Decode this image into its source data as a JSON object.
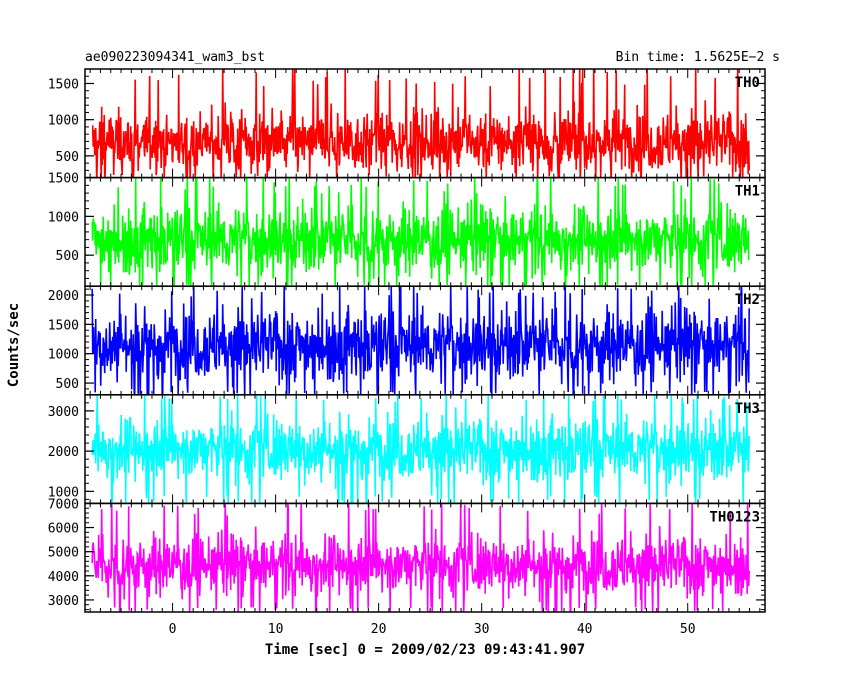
{
  "header": {
    "title": "ae090223094341_wam3_bst",
    "bin_time": "Bin time: 1.5625E−2 s"
  },
  "chart_data": {
    "type": "line",
    "title": "ae090223094341_wam3_bst",
    "subtitle": "Bin time: 1.5625E−2 s",
    "xlabel": "Time [sec] 0 = 2009/02/23 09:43:41.907",
    "ylabel": "Counts/sec",
    "xlim": [
      -8.5,
      57.5
    ],
    "x_range_data": [
      -7.8,
      56.0
    ],
    "bin_time_s": 0.015625,
    "xticks": [
      0,
      10,
      20,
      30,
      40,
      50
    ],
    "grid": false,
    "panels": [
      {
        "name": "TH0",
        "color": "#ff0000",
        "ylim": [
          200,
          1700
        ],
        "yticks": [
          500,
          1000,
          1500
        ],
        "typical_range": [
          120,
          1450
        ],
        "mean": 700,
        "spread": 300
      },
      {
        "name": "TH1",
        "color": "#00ff00",
        "ylim": [
          100,
          1500
        ],
        "yticks": [
          500,
          1000,
          1500
        ],
        "typical_range": [
          120,
          1300
        ],
        "mean": 700,
        "spread": 300
      },
      {
        "name": "TH2",
        "color": "#0000ff",
        "ylim": [
          300,
          2150
        ],
        "yticks": [
          500,
          1000,
          1500,
          2000
        ],
        "typical_range": [
          350,
          1950
        ],
        "mean": 1150,
        "spread": 420
      },
      {
        "name": "TH3",
        "color": "#00ffff",
        "ylim": [
          700,
          3400
        ],
        "yticks": [
          1000,
          2000,
          3000
        ],
        "typical_range": [
          900,
          3200
        ],
        "mean": 2050,
        "spread": 550
      },
      {
        "name": "TH0123",
        "color": "#ff00ff",
        "ylim": [
          2500,
          7000
        ],
        "yticks": [
          3000,
          4000,
          5000,
          6000,
          7000
        ],
        "typical_range": [
          2700,
          6500
        ],
        "mean": 4450,
        "spread": 850
      }
    ]
  }
}
